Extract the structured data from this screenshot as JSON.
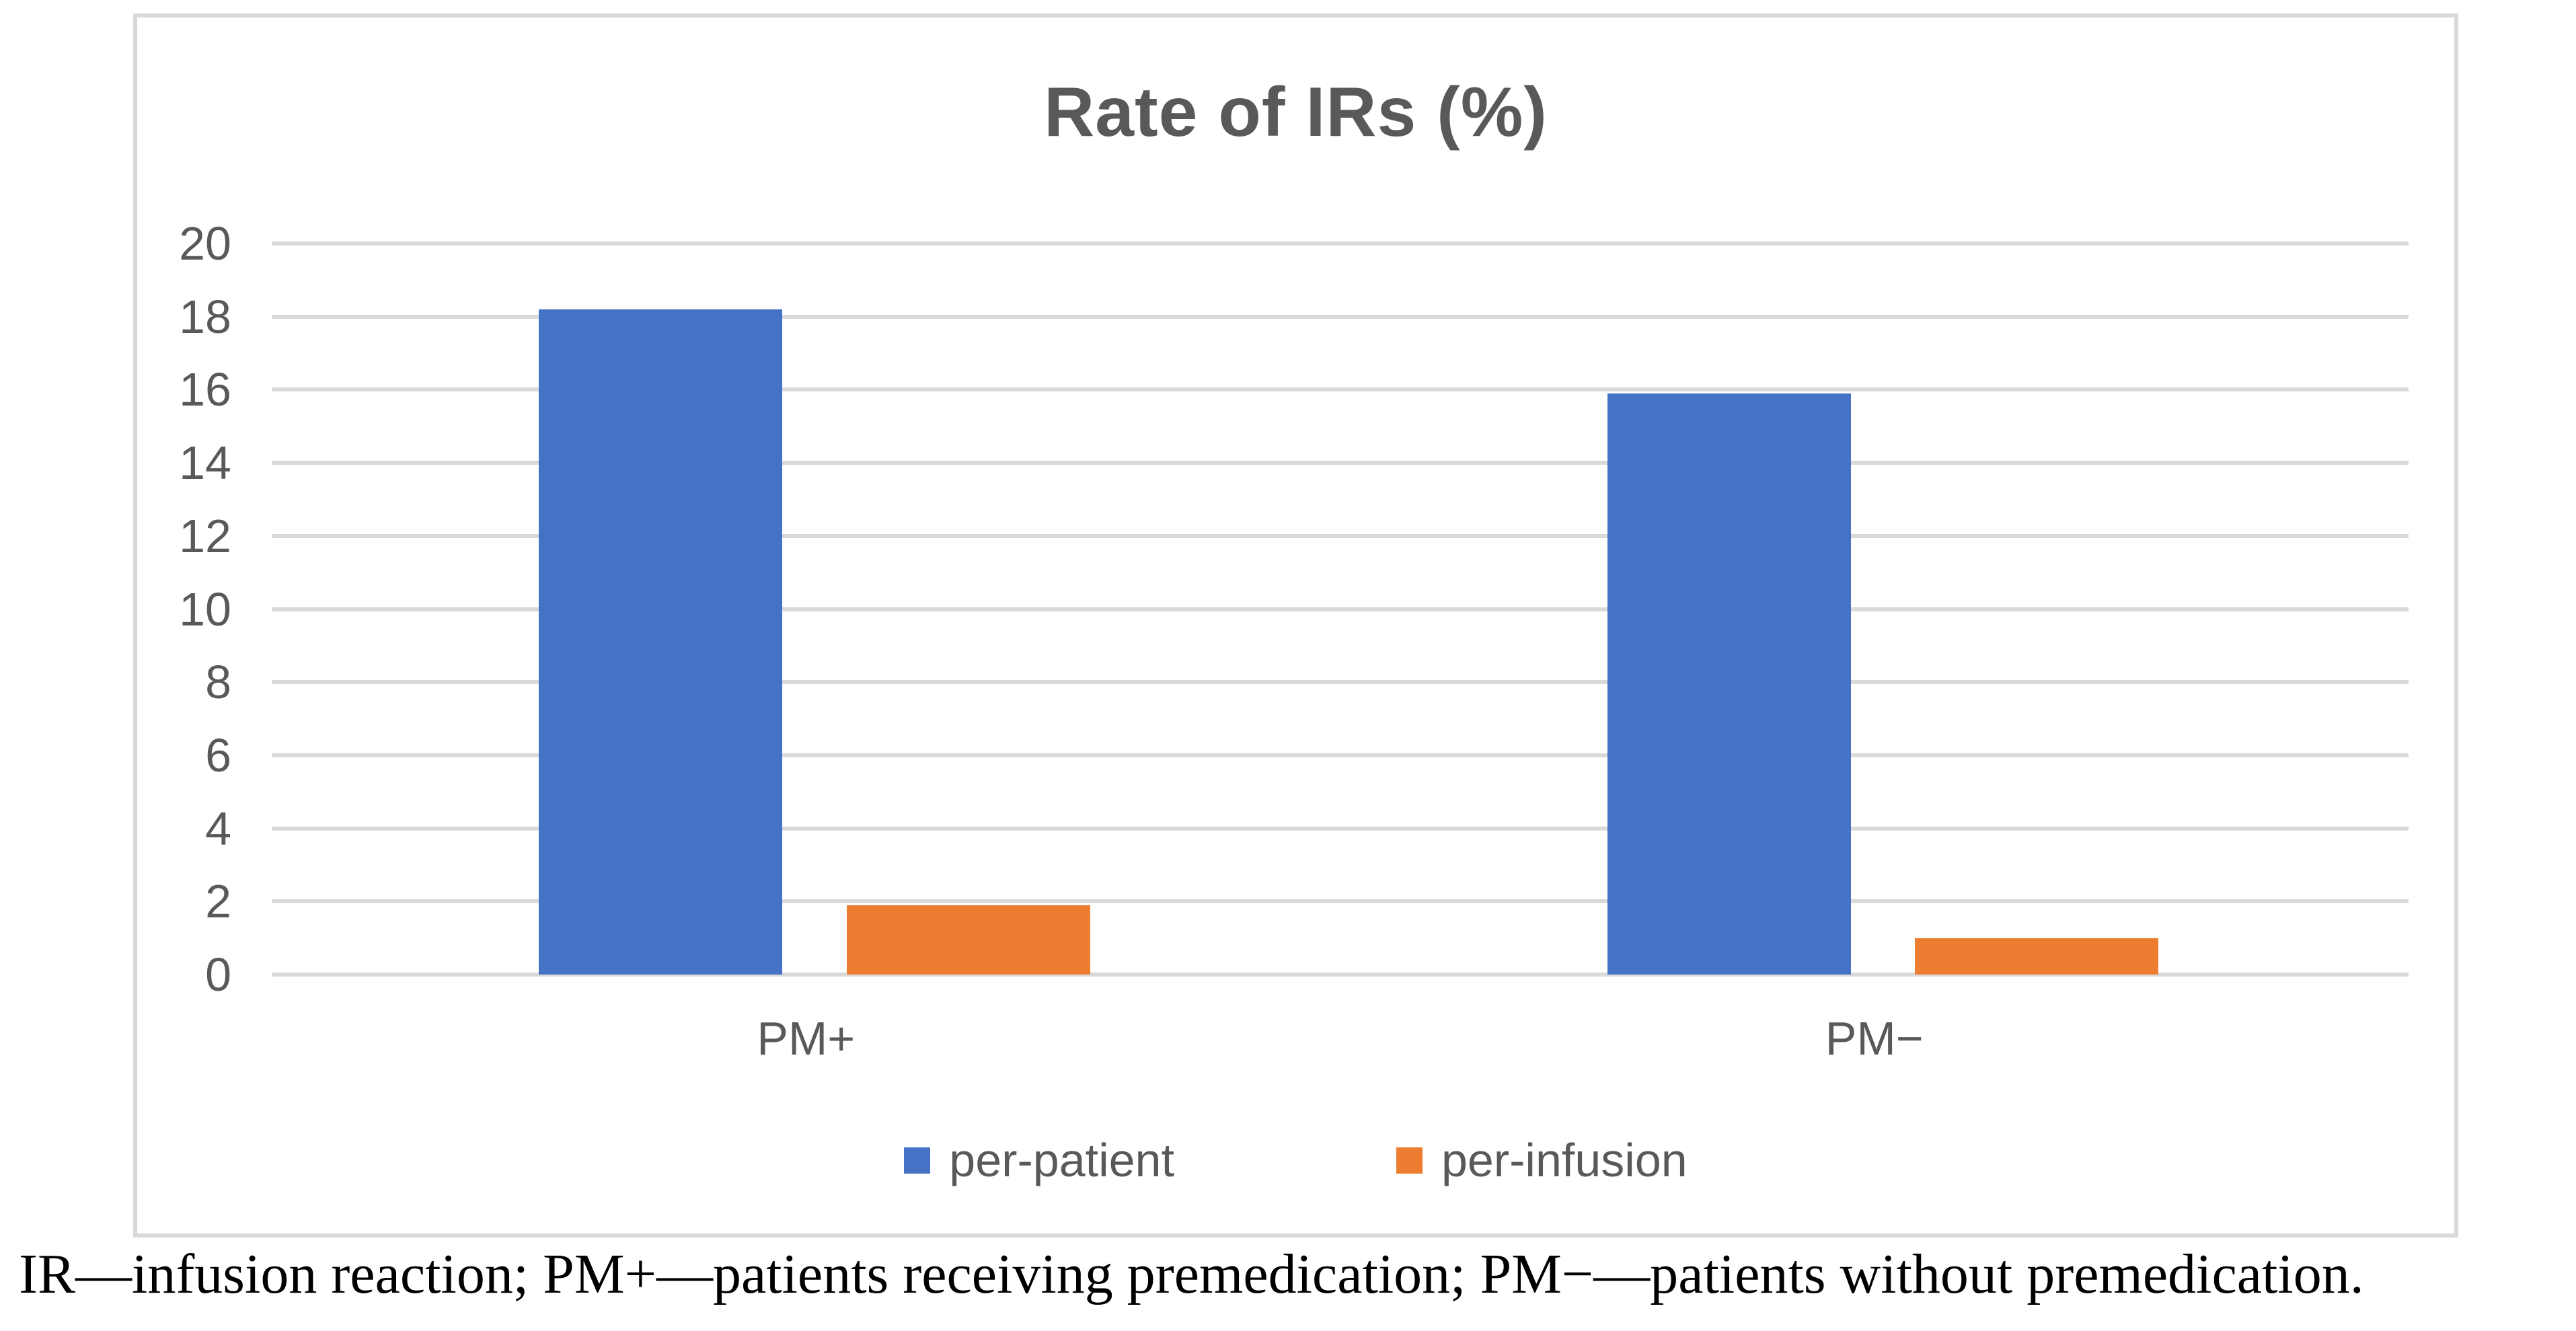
{
  "title": "Rate of IRs (%)",
  "caption": "IR—infusion reaction; PM+—patients receiving premedication; PM−—patients without premedication.",
  "colors": {
    "per_patient": "#4472C4",
    "per_infusion": "#ED7D31",
    "gridline": "#D9D9D9",
    "frame_border": "#D9D9D9",
    "chart_text": "#595959",
    "caption_text": "#000000"
  },
  "chart_data": {
    "type": "bar",
    "title": "Rate of IRs (%)",
    "categories": [
      "PM+",
      "PM−"
    ],
    "series": [
      {
        "name": "per-patient",
        "color": "#4472C4",
        "values": [
          18.2,
          15.9
        ]
      },
      {
        "name": "per-infusion",
        "color": "#ED7D31",
        "values": [
          1.9,
          1.0
        ]
      }
    ],
    "xlabel": "",
    "ylabel": "",
    "ylim": [
      0,
      20
    ],
    "yticks": [
      0,
      2,
      4,
      6,
      8,
      10,
      12,
      14,
      16,
      18,
      20
    ],
    "grid": "horizontal-gridlines",
    "legend_position": "bottom-center"
  },
  "legend": {
    "items": [
      {
        "label": "per-patient",
        "color": "#4472C4"
      },
      {
        "label": "per-infusion",
        "color": "#ED7D31"
      }
    ]
  }
}
